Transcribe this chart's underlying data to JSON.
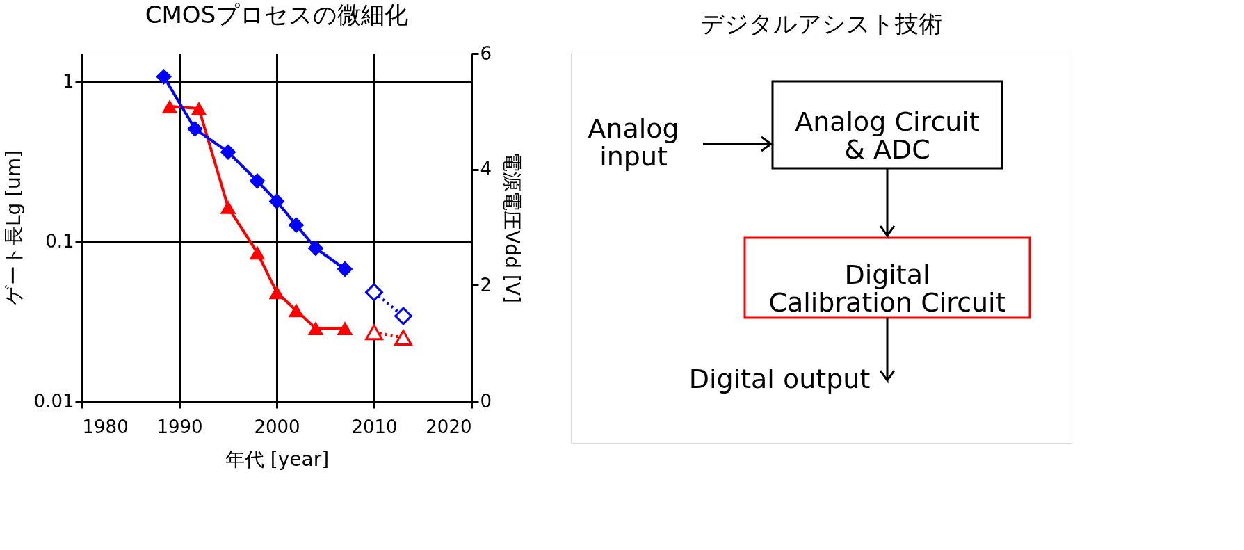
{
  "chart_data": [
    {
      "type": "line",
      "title": "CMOSプロセスの微細化",
      "xlabel": "年代 [year]",
      "ylabel": "ゲート長Lg [um]",
      "y2label": "電源電圧Vdd [V]",
      "xlim": [
        1980,
        2020
      ],
      "xticks": [
        1980,
        1990,
        2000,
        2010,
        2020
      ],
      "ylim": [
        0.01,
        1.5
      ],
      "yticks": [
        0.01,
        0.1,
        1
      ],
      "y2lim": [
        0,
        6
      ],
      "y2ticks": [
        0,
        2,
        4,
        6
      ],
      "log": "y",
      "grid": true,
      "series": [
        {
          "color": "#ff0000",
          "marker": "triangle",
          "line_style": "solid",
          "x": [
            1989,
            1992,
            1995,
            1998,
            2000,
            2002,
            2004,
            2007
          ],
          "values": [
            0.7,
            0.68,
            0.164,
            0.085,
            0.048,
            0.037,
            0.0286,
            0.0286
          ]
        },
        {
          "color": "#ff0000",
          "marker": "triangle",
          "line_style": "dotted",
          "x": [
            2010,
            2013
          ],
          "values": [
            0.027,
            0.025
          ]
        },
        {
          "color": "#0000ff",
          "marker": "diamond",
          "line_style": "solid",
          "axis": "y2",
          "x": [
            1988.4,
            1991.6,
            1995,
            1998,
            2000,
            2002,
            2004,
            2007
          ],
          "values": [
            5.6,
            4.7,
            4.3,
            3.8,
            3.45,
            3.04,
            2.64,
            2.28
          ]
        },
        {
          "color": "#0000ff",
          "marker": "diamond",
          "line_style": "dotted",
          "axis": "y2",
          "x": [
            2010,
            2013
          ],
          "values": [
            1.88,
            1.47
          ]
        }
      ]
    },
    {
      "type": "other",
      "title": "デジタルアシスト技術",
      "annotations": [
        "Analog\ninput",
        "Analog Circuit\n& ADC",
        "Digital\nCalibration Circuit",
        "Digital output"
      ]
    }
  ]
}
